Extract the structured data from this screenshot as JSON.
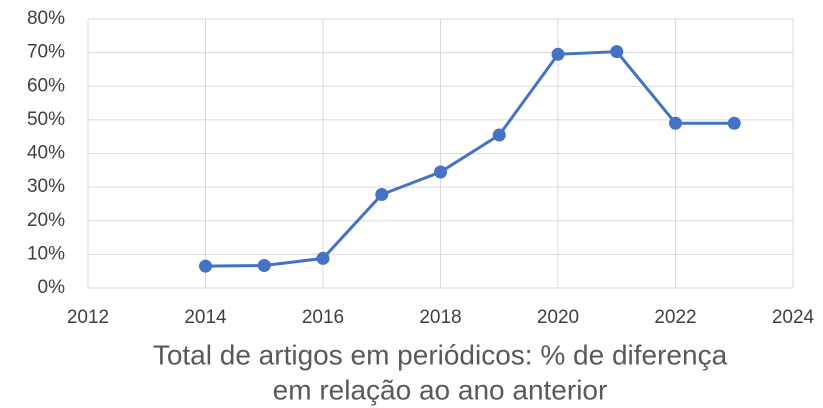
{
  "chart_data": {
    "type": "line",
    "title": [
      "Total de artigos em periódicos: % de diferença",
      "em relação ao ano anterior"
    ],
    "x": [
      2014,
      2015,
      2016,
      2017,
      2018,
      2019,
      2020,
      2021,
      2022,
      2023
    ],
    "series": [
      {
        "color": "#4472c4",
        "values": [
          6.5,
          6.7,
          8.8,
          27.8,
          34.5,
          45.5,
          69.5,
          70.3,
          49,
          49
        ]
      }
    ],
    "xlim": [
      2012,
      2024
    ],
    "xticks": [
      2012,
      2014,
      2016,
      2018,
      2020,
      2022,
      2024
    ],
    "ylim": [
      0,
      80
    ],
    "yticks": [
      {
        "value": 0,
        "label": "0%"
      },
      {
        "value": 10,
        "label": "10%"
      },
      {
        "value": 20,
        "label": "20%"
      },
      {
        "value": 30,
        "label": "30%"
      },
      {
        "value": 40,
        "label": "40%"
      },
      {
        "value": 50,
        "label": "50%"
      },
      {
        "value": 60,
        "label": "60%"
      },
      {
        "value": 70,
        "label": "70%"
      },
      {
        "value": 80,
        "label": "80%"
      }
    ],
    "grid": true
  }
}
